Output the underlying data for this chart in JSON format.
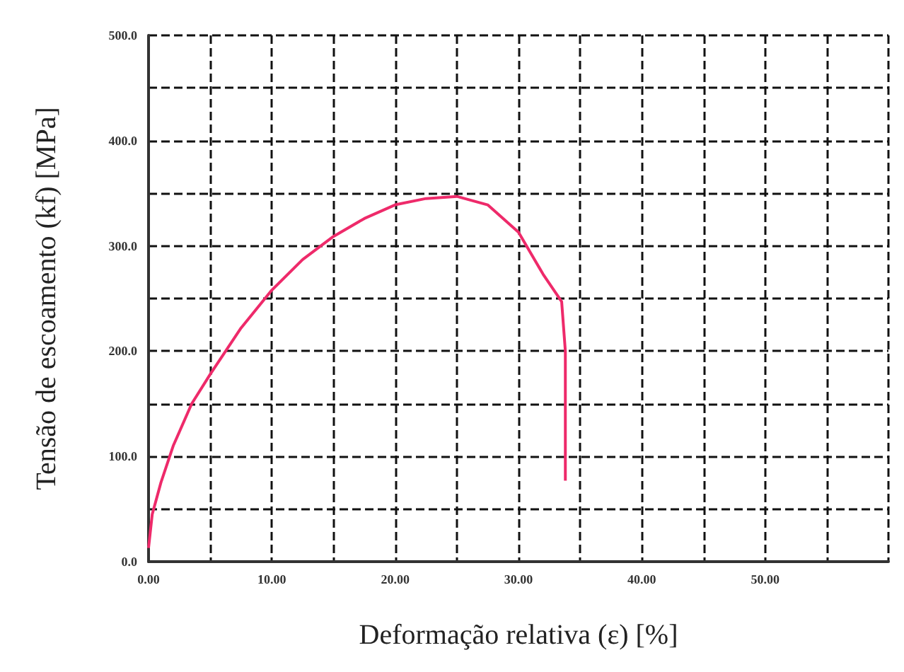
{
  "chart_data": {
    "type": "line",
    "xlabel": "Deformação relativa (ε) [%]",
    "ylabel": "Tensão de escoamento (kf) [MPa]",
    "x": [
      0,
      0.3,
      1,
      2,
      3.5,
      5,
      7.5,
      10,
      12.5,
      15,
      17.5,
      20,
      22.5,
      25,
      27.5,
      30,
      32,
      33.5,
      33.8,
      33.8
    ],
    "series": [
      {
        "color": "#ee2a6a",
        "values": [
          13,
          45,
          75,
          110,
          150,
          178,
          222,
          258,
          287,
          309,
          326,
          339,
          345,
          347,
          339,
          313,
          273,
          247,
          200,
          77
        ]
      }
    ],
    "xlim": [
      0,
      60
    ],
    "ylim": [
      0,
      500
    ],
    "xticks": [
      {
        "value": 0,
        "label": "0.00"
      },
      {
        "value": 5,
        "label": null
      },
      {
        "value": 10,
        "label": "10.00"
      },
      {
        "value": 15,
        "label": null
      },
      {
        "value": 20,
        "label": "20.00"
      },
      {
        "value": 25,
        "label": null
      },
      {
        "value": 30,
        "label": "30.00"
      },
      {
        "value": 35,
        "label": null
      },
      {
        "value": 40,
        "label": "40.00"
      },
      {
        "value": 45,
        "label": null
      },
      {
        "value": 50,
        "label": "50.00"
      },
      {
        "value": 55,
        "label": null
      },
      {
        "value": 60,
        "label": null
      }
    ],
    "yticks": [
      {
        "value": 0,
        "label": "0.0"
      },
      {
        "value": 50,
        "label": null
      },
      {
        "value": 100,
        "label": "100.0"
      },
      {
        "value": 150,
        "label": null
      },
      {
        "value": 200,
        "label": "200.0"
      },
      {
        "value": 250,
        "label": null
      },
      {
        "value": 300,
        "label": "300.0"
      },
      {
        "value": 350,
        "label": null
      },
      {
        "value": 400,
        "label": "400.0"
      },
      {
        "value": 450,
        "label": null
      },
      {
        "value": 500,
        "label": "500.0"
      }
    ],
    "grid": true,
    "marker": "none",
    "line_style": "solid"
  }
}
